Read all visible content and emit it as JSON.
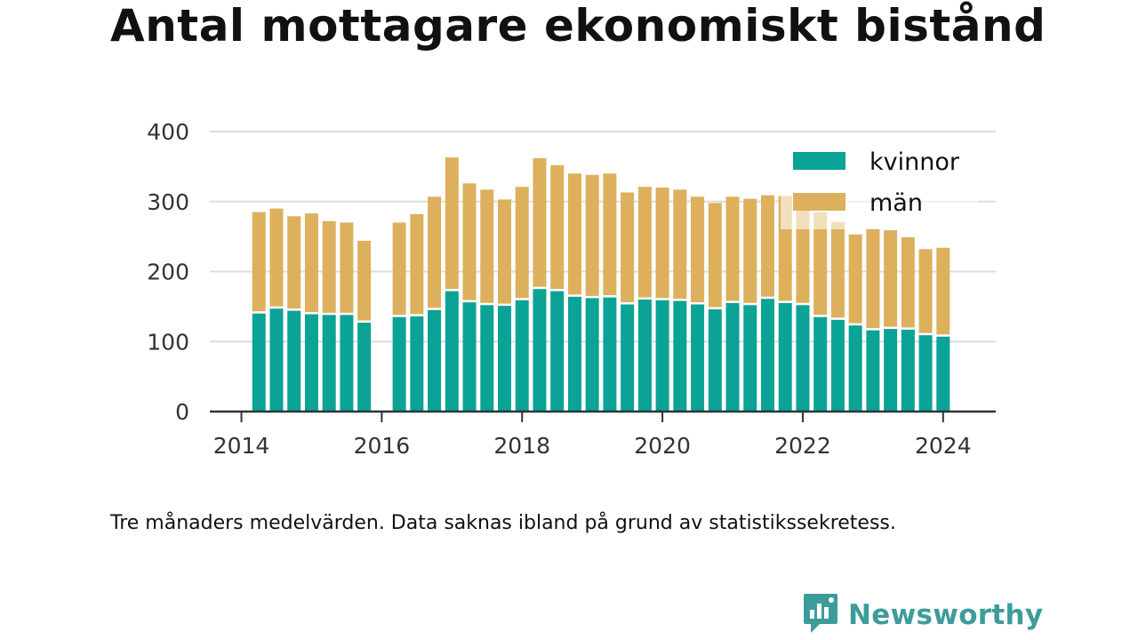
{
  "title": "Antal mottagare ekonomiskt bistånd",
  "footnote": "Tre månaders medelvärden. Data saknas ibland på grund av statistikssekretess.",
  "brand": {
    "name": "Newsworthy",
    "icon": "newsworthy-logo-icon",
    "color": "#3d9c9a"
  },
  "colors": {
    "kvinnor": "#0aa396",
    "man": "#ddb05d",
    "gridline": "#dddddd",
    "axis": "#333333"
  },
  "chart_data": {
    "type": "bar",
    "stacked": true,
    "x_unit": "year",
    "xlim": [
      2013.55,
      2024.75
    ],
    "ylim": [
      0,
      400
    ],
    "yticks": [
      0,
      100,
      200,
      300,
      400
    ],
    "xticks": [
      2014,
      2016,
      2018,
      2020,
      2022,
      2024
    ],
    "grid": true,
    "legend_position": "top-right",
    "bar_width_years": 0.19,
    "x": [
      2014.25,
      2014.5,
      2014.75,
      2015.0,
      2015.25,
      2015.5,
      2015.75,
      2016.25,
      2016.5,
      2016.75,
      2017.0,
      2017.25,
      2017.5,
      2017.75,
      2018.0,
      2018.25,
      2018.5,
      2018.75,
      2019.0,
      2019.25,
      2019.5,
      2019.75,
      2020.0,
      2020.25,
      2020.5,
      2020.75,
      2021.0,
      2021.25,
      2021.5,
      2021.75,
      2022.0,
      2022.25,
      2022.5,
      2022.75,
      2023.0,
      2023.25,
      2023.5,
      2023.75,
      2024.0
    ],
    "series": [
      {
        "name": "kvinnor",
        "values": [
          140,
          147,
          144,
          139,
          138,
          138,
          127,
          135,
          136,
          145,
          172,
          156,
          152,
          151,
          159,
          175,
          172,
          164,
          162,
          163,
          153,
          160,
          159,
          158,
          153,
          146,
          155,
          152,
          161,
          155,
          152,
          135,
          131,
          123,
          116,
          118,
          117,
          109,
          107
        ]
      },
      {
        "name": "män",
        "values": [
          145,
          143,
          135,
          144,
          134,
          132,
          117,
          135,
          146,
          162,
          191,
          170,
          165,
          152,
          162,
          187,
          180,
          176,
          176,
          177,
          160,
          161,
          161,
          159,
          154,
          152,
          152,
          152,
          148,
          153,
          146,
          150,
          140,
          130,
          145,
          141,
          132,
          123,
          127
        ]
      }
    ]
  }
}
